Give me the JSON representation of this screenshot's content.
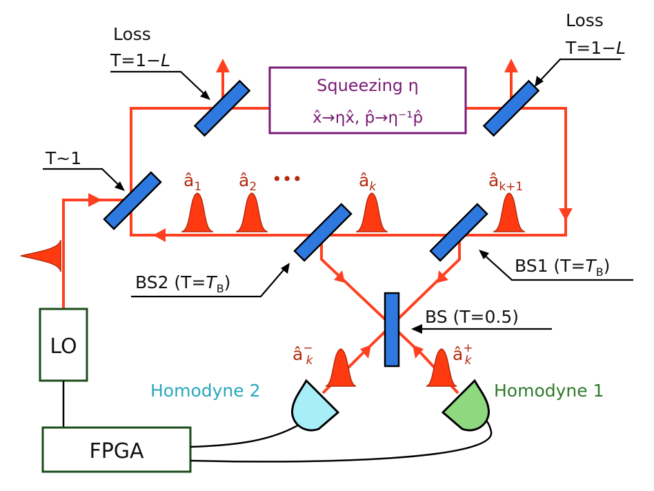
{
  "labels": {
    "loss_left_title": "Loss",
    "loss_left_T": "T=1−",
    "loss_left_L": "L",
    "loss_right_title": "Loss",
    "loss_right_T": "T=1−",
    "loss_right_L": "L",
    "t_approx": "T~1",
    "squeezing_title": "Squeezing η",
    "squeezing_transform": "x̂→ηx̂, p̂→η⁻¹p̂",
    "bs1_prefix": "BS1 (T=",
    "bs1_T": "T",
    "bs1_sub": "B",
    "bs1_suffix": ")",
    "bs2_prefix": "BS2 (T=",
    "bs2_T": "T",
    "bs2_sub": "B",
    "bs2_suffix": ")",
    "bs_half": "BS (T=0.5)",
    "lo": "LO",
    "fpga": "FPGA",
    "homodyne_2": "Homodyne 2",
    "homodyne_1": "Homodyne 1"
  },
  "modes": {
    "a1_base": "â",
    "a1_sub": "1",
    "a2_base": "â",
    "a2_sub": "2",
    "ellipsis": "•••",
    "ak_base": "â",
    "ak_sub": "k",
    "ak1_base": "â",
    "ak1_sub": "k+1",
    "akminus_base": "â",
    "akminus_sub": "k",
    "akminus_sup": "−",
    "akplus_base": "â",
    "akplus_sub": "k",
    "akplus_sup": "+"
  },
  "colors": {
    "beam": "#ff4020",
    "mirror": "#2e79e0",
    "squeezing": "#7a1a74",
    "homodyne_2": "#a8eef8",
    "homodyne_1": "#8ed880",
    "box_border": "#1a4a1a"
  }
}
